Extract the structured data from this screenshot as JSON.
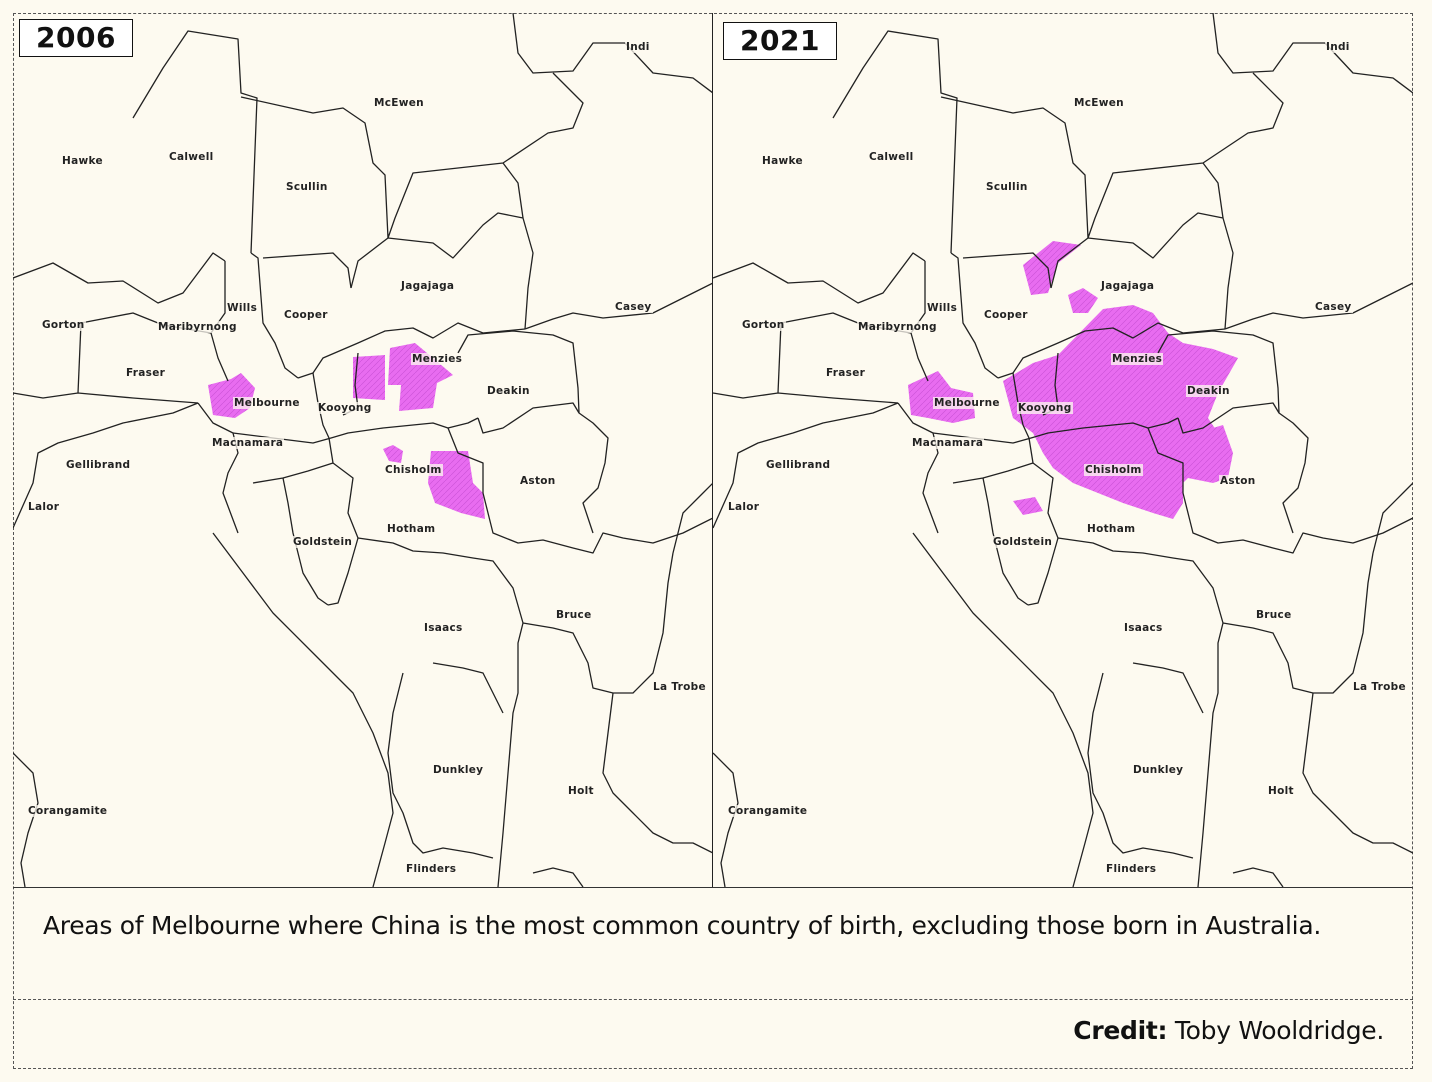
{
  "maps": [
    {
      "year": "2006",
      "labels": [
        "Indi",
        "McEwen",
        "Hawke",
        "Calwell",
        "Scullin",
        "Jagajaga",
        "Casey",
        "Gorton",
        "Wills",
        "Cooper",
        "Maribyrnong",
        "Menzies",
        "Fraser",
        "Melbourne",
        "Kooyong",
        "Deakin",
        "Macnamara",
        "Gellibrand",
        "Chisholm",
        "Aston",
        "Lalor",
        "Hotham",
        "Goldstein",
        "Bruce",
        "Isaacs",
        "La Trobe",
        "Dunkley",
        "Holt",
        "Corangamite",
        "Flinders"
      ]
    },
    {
      "year": "2021",
      "labels": [
        "Indi",
        "McEwen",
        "Hawke",
        "Calwell",
        "Scullin",
        "Jagajaga",
        "Casey",
        "Gorton",
        "Wills",
        "Cooper",
        "Maribyrnong",
        "Menzies",
        "Fraser",
        "Melbourne",
        "Kooyong",
        "Deakin",
        "Macnamara",
        "Gellibrand",
        "Chisholm",
        "Aston",
        "Lalor",
        "Hotham",
        "Goldstein",
        "Bruce",
        "Isaacs",
        "La Trobe",
        "Dunkley",
        "Holt",
        "Corangamite",
        "Flinders"
      ]
    }
  ],
  "highlight_color": "#e86cf0",
  "caption": "Areas of Melbourne where China is the most common country of birth, excluding those born in Australia.",
  "credit": {
    "label": "Credit:",
    "value": "Toby Wooldridge."
  }
}
